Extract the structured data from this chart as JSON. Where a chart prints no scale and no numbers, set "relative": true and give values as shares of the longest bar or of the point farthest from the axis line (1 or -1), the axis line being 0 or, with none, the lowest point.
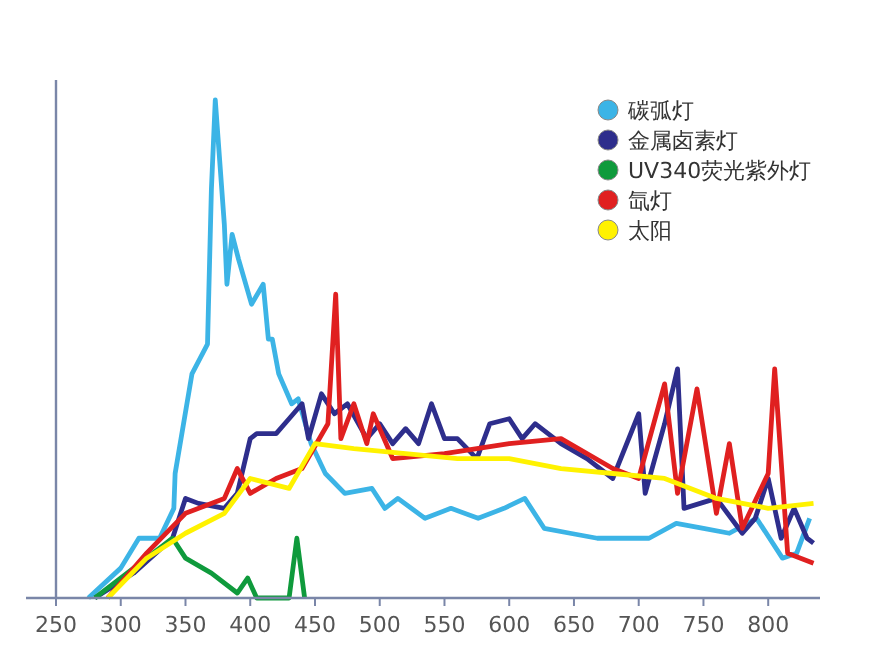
{
  "chart_data": {
    "type": "line",
    "relative": true,
    "xlim": [
      250,
      840
    ],
    "xticks": [
      250,
      300,
      350,
      400,
      450,
      500,
      550,
      600,
      650,
      700,
      750,
      800
    ],
    "legend": "top right",
    "marker": "none",
    "line_style": "solid",
    "series": [
      {
        "name": "碳弧灯",
        "color": "#3cb4e6",
        "x": [
          275,
          300,
          314,
          330,
          341,
          342,
          355,
          367,
          370,
          373,
          380,
          382,
          386,
          391,
          401,
          410,
          414,
          417,
          422,
          432,
          437,
          447,
          458,
          473,
          494,
          504,
          514,
          535,
          555,
          576,
          596,
          612,
          627,
          647,
          668,
          688,
          708,
          729,
          750,
          770,
          791,
          811,
          822,
          832
        ],
        "values": [
          0,
          0.06,
          0.12,
          0.12,
          0.18,
          0.25,
          0.45,
          0.51,
          0.82,
          1.0,
          0.75,
          0.63,
          0.73,
          0.68,
          0.59,
          0.63,
          0.52,
          0.52,
          0.45,
          0.39,
          0.4,
          0.31,
          0.25,
          0.21,
          0.22,
          0.18,
          0.2,
          0.16,
          0.18,
          0.16,
          0.18,
          0.2,
          0.14,
          0.13,
          0.12,
          0.12,
          0.12,
          0.15,
          0.14,
          0.13,
          0.16,
          0.08,
          0.09,
          0.16
        ]
      },
      {
        "name": "金属卤素灯",
        "color": "#2e2e8c",
        "x": [
          280,
          310,
          340,
          350,
          360,
          380,
          390,
          400,
          405,
          420,
          430,
          440,
          445,
          455,
          465,
          475,
          490,
          500,
          510,
          520,
          530,
          540,
          550,
          560,
          575,
          585,
          600,
          610,
          620,
          640,
          660,
          680,
          700,
          705,
          720,
          730,
          735,
          760,
          780,
          790,
          800,
          810,
          820,
          830,
          835
        ],
        "values": [
          0,
          0.05,
          0.12,
          0.2,
          0.19,
          0.18,
          0.21,
          0.32,
          0.33,
          0.33,
          0.36,
          0.39,
          0.32,
          0.41,
          0.37,
          0.39,
          0.32,
          0.35,
          0.31,
          0.34,
          0.31,
          0.39,
          0.32,
          0.32,
          0.28,
          0.35,
          0.36,
          0.32,
          0.35,
          0.31,
          0.28,
          0.24,
          0.37,
          0.21,
          0.35,
          0.46,
          0.18,
          0.2,
          0.13,
          0.16,
          0.24,
          0.12,
          0.18,
          0.12,
          0.11
        ]
      },
      {
        "name": "UV340荧光紫外灯",
        "color": "#0f9a3c",
        "x": [
          280,
          320,
          340,
          350,
          370,
          390,
          398,
          405,
          430,
          436,
          442
        ],
        "values": [
          0,
          0.08,
          0.12,
          0.08,
          0.05,
          0.01,
          0.04,
          0,
          0,
          0.12,
          0
        ]
      },
      {
        "name": "氙灯",
        "color": "#e02020",
        "x": [
          290,
          320,
          350,
          380,
          390,
          400,
          420,
          440,
          460,
          466,
          470,
          480,
          490,
          495,
          510,
          550,
          600,
          640,
          680,
          700,
          720,
          730,
          745,
          760,
          770,
          780,
          800,
          805,
          815,
          835
        ],
        "values": [
          0,
          0.09,
          0.17,
          0.2,
          0.26,
          0.21,
          0.24,
          0.26,
          0.35,
          0.61,
          0.32,
          0.39,
          0.31,
          0.37,
          0.28,
          0.29,
          0.31,
          0.32,
          0.26,
          0.24,
          0.43,
          0.21,
          0.42,
          0.17,
          0.31,
          0.14,
          0.25,
          0.46,
          0.09,
          0.07
        ]
      },
      {
        "name": "太阳",
        "color": "#fff200",
        "x": [
          290,
          320,
          350,
          380,
          400,
          430,
          450,
          480,
          520,
          560,
          600,
          640,
          680,
          720,
          760,
          800,
          835
        ],
        "values": [
          0,
          0.08,
          0.13,
          0.17,
          0.24,
          0.22,
          0.31,
          0.3,
          0.29,
          0.28,
          0.28,
          0.26,
          0.25,
          0.24,
          0.2,
          0.18,
          0.19
        ]
      }
    ]
  }
}
